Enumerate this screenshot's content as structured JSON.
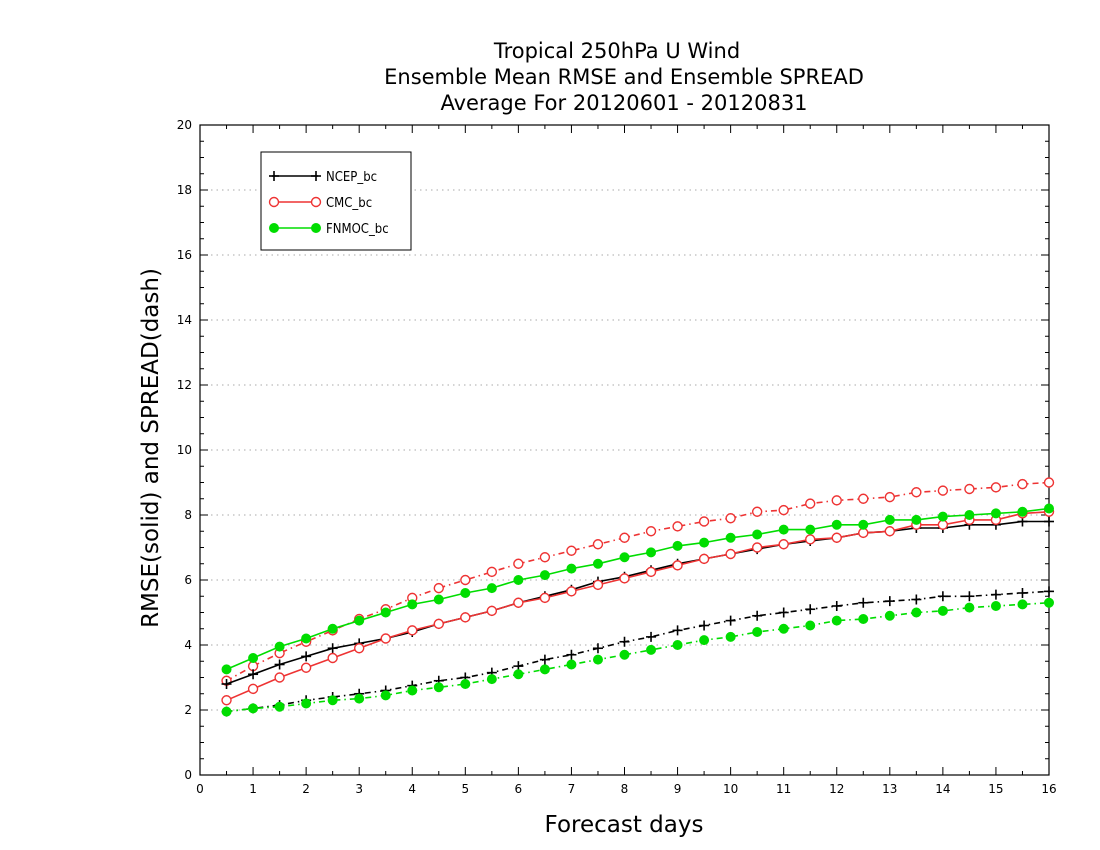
{
  "chart_data": {
    "type": "line",
    "title": [
      "Tropical 250hPa U Wind",
      "Ensemble Mean RMSE and Ensemble SPREAD",
      "Average For 20120601 - 20120831"
    ],
    "xlabel": "Forecast days",
    "ylabel": "RMSE(solid) and SPREAD(dash)",
    "xlim": [
      0,
      16
    ],
    "ylim": [
      0,
      20
    ],
    "xticks": [
      0,
      1,
      2,
      3,
      4,
      5,
      6,
      7,
      8,
      9,
      10,
      11,
      12,
      13,
      14,
      15,
      16
    ],
    "yticks": [
      0,
      2,
      4,
      6,
      8,
      10,
      12,
      14,
      16,
      18,
      20
    ],
    "grid": "horizontal dotted",
    "legend_position": "top-left",
    "x": [
      0.5,
      1,
      1.5,
      2,
      2.5,
      3,
      3.5,
      4,
      4.5,
      5,
      5.5,
      6,
      6.5,
      7,
      7.5,
      8,
      8.5,
      9,
      9.5,
      10,
      10.5,
      11,
      11.5,
      12,
      12.5,
      13,
      13.5,
      14,
      14.5,
      15,
      15.5,
      16
    ],
    "series": [
      {
        "name": "NCEP_bc",
        "metric": "RMSE",
        "style": "solid",
        "marker": "plus",
        "color": "#000000",
        "values": [
          2.8,
          3.1,
          3.4,
          3.65,
          3.9,
          4.05,
          4.2,
          4.4,
          4.65,
          4.85,
          5.05,
          5.3,
          5.5,
          5.7,
          5.95,
          6.1,
          6.3,
          6.5,
          6.65,
          6.8,
          6.95,
          7.1,
          7.2,
          7.3,
          7.45,
          7.5,
          7.6,
          7.6,
          7.7,
          7.7,
          7.8,
          7.8
        ]
      },
      {
        "name": "CMC_bc",
        "metric": "RMSE",
        "style": "solid",
        "marker": "open-circle",
        "color": "#ee3333",
        "values": [
          2.3,
          2.65,
          3.0,
          3.3,
          3.6,
          3.9,
          4.2,
          4.45,
          4.65,
          4.85,
          5.05,
          5.3,
          5.45,
          5.65,
          5.85,
          6.05,
          6.25,
          6.45,
          6.65,
          6.8,
          7.0,
          7.1,
          7.25,
          7.3,
          7.45,
          7.5,
          7.7,
          7.7,
          7.85,
          7.85,
          8.05,
          8.1
        ]
      },
      {
        "name": "FNMOC_bc",
        "metric": "RMSE",
        "style": "solid",
        "marker": "filled-circle",
        "color": "#00dd00",
        "values": [
          3.25,
          3.6,
          3.95,
          4.2,
          4.5,
          4.75,
          5.0,
          5.25,
          5.4,
          5.6,
          5.75,
          6.0,
          6.15,
          6.35,
          6.5,
          6.7,
          6.85,
          7.05,
          7.15,
          7.3,
          7.4,
          7.55,
          7.55,
          7.7,
          7.7,
          7.85,
          7.85,
          7.95,
          8.0,
          8.05,
          8.1,
          8.2
        ]
      },
      {
        "name": "NCEP_bc",
        "metric": "SPREAD",
        "style": "dash",
        "marker": "plus",
        "color": "#000000",
        "values": [
          1.95,
          2.05,
          2.15,
          2.3,
          2.4,
          2.5,
          2.6,
          2.75,
          2.9,
          3.0,
          3.15,
          3.35,
          3.55,
          3.7,
          3.9,
          4.1,
          4.25,
          4.45,
          4.6,
          4.75,
          4.9,
          5.0,
          5.1,
          5.2,
          5.3,
          5.35,
          5.4,
          5.5,
          5.5,
          5.55,
          5.6,
          5.65
        ]
      },
      {
        "name": "CMC_bc",
        "metric": "SPREAD",
        "style": "dash",
        "marker": "open-circle",
        "color": "#ee3333",
        "values": [
          2.9,
          3.35,
          3.75,
          4.1,
          4.45,
          4.8,
          5.1,
          5.45,
          5.75,
          6.0,
          6.25,
          6.5,
          6.7,
          6.9,
          7.1,
          7.3,
          7.5,
          7.65,
          7.8,
          7.9,
          8.1,
          8.15,
          8.35,
          8.45,
          8.5,
          8.55,
          8.7,
          8.75,
          8.8,
          8.85,
          8.95,
          9.0
        ]
      },
      {
        "name": "FNMOC_bc",
        "metric": "SPREAD",
        "style": "dash",
        "marker": "filled-circle",
        "color": "#00dd00",
        "values": [
          1.95,
          2.05,
          2.1,
          2.2,
          2.3,
          2.35,
          2.45,
          2.6,
          2.7,
          2.8,
          2.95,
          3.1,
          3.25,
          3.4,
          3.55,
          3.7,
          3.85,
          4.0,
          4.15,
          4.25,
          4.4,
          4.5,
          4.6,
          4.75,
          4.8,
          4.9,
          5.0,
          5.05,
          5.15,
          5.2,
          5.25,
          5.3
        ]
      }
    ],
    "legend": [
      {
        "name": "NCEP_bc",
        "marker": "plus",
        "color": "#000000"
      },
      {
        "name": "CMC_bc",
        "marker": "open-circle",
        "color": "#ee3333"
      },
      {
        "name": "FNMOC_bc",
        "marker": "filled-circle",
        "color": "#00dd00"
      }
    ]
  }
}
